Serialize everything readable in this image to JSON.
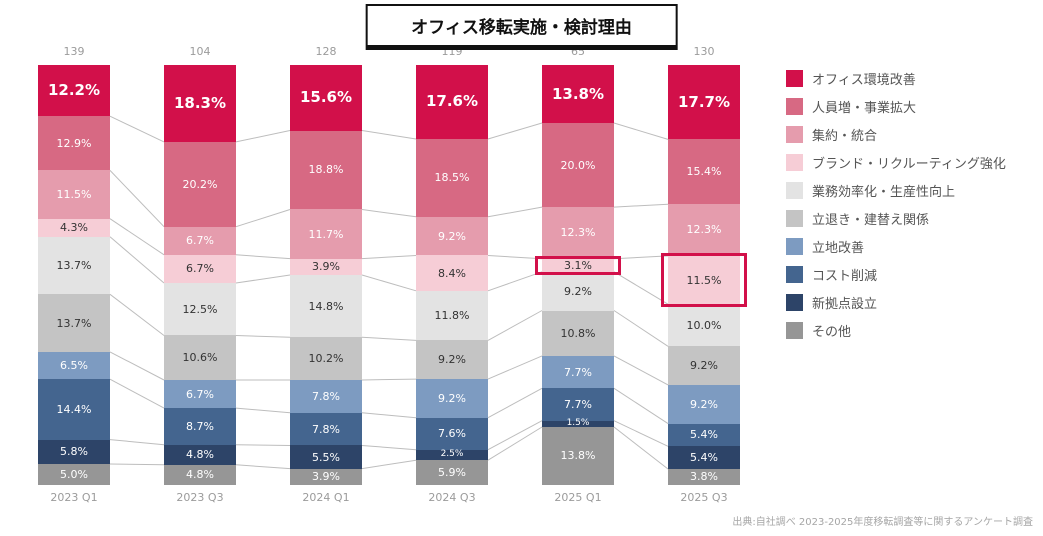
{
  "title": "オフィス移転実施・検討理由",
  "source_note": "出典:自社調べ 2023-2025年度移転調査等に関するアンケート調査",
  "chart_data": {
    "type": "bar",
    "variant": "stacked-100-percent",
    "title": "オフィス移転実施・検討理由",
    "unit": "%",
    "legend_position": "right",
    "grid": false,
    "categories": [
      "2023 Q1",
      "2023 Q3",
      "2024 Q1",
      "2024 Q3",
      "2025 Q1",
      "2025 Q3"
    ],
    "sample_sizes": [
      "139",
      "104",
      "128",
      "119",
      "65",
      "130"
    ],
    "series": [
      {
        "name": "オフィス環境改善",
        "color": "#d2104a",
        "text_color": "#ffffff",
        "values": [
          12.2,
          18.3,
          15.6,
          17.6,
          13.8,
          17.7
        ]
      },
      {
        "name": "人員増・事業拡大",
        "color": "#d76983",
        "text_color": "#ffffff",
        "values": [
          12.9,
          20.2,
          18.8,
          18.5,
          20.0,
          15.4
        ]
      },
      {
        "name": "集約・統合",
        "color": "#e59cad",
        "text_color": "#ffffff",
        "values": [
          11.5,
          6.7,
          11.7,
          9.2,
          12.3,
          12.3
        ]
      },
      {
        "name": "ブランド・リクルーティング強化",
        "color": "#f6cdd6",
        "text_color": "#333333",
        "values": [
          4.3,
          6.7,
          3.9,
          8.4,
          3.1,
          11.5
        ]
      },
      {
        "name": "業務効率化・生産性向上",
        "color": "#e3e3e3",
        "text_color": "#333333",
        "values": [
          13.7,
          12.5,
          14.8,
          11.8,
          9.2,
          10.0
        ]
      },
      {
        "name": "立退き・建替え関係",
        "color": "#c4c4c4",
        "text_color": "#333333",
        "values": [
          13.7,
          10.6,
          10.2,
          9.2,
          10.8,
          9.2
        ]
      },
      {
        "name": "立地改善",
        "color": "#7d9bc1",
        "text_color": "#ffffff",
        "values": [
          6.5,
          6.7,
          7.8,
          9.2,
          7.7,
          9.2
        ]
      },
      {
        "name": "コスト削減",
        "color": "#44658f",
        "text_color": "#ffffff",
        "values": [
          14.4,
          8.7,
          7.8,
          7.6,
          7.7,
          5.4
        ]
      },
      {
        "name": "新拠点設立",
        "color": "#2d4468",
        "text_color": "#ffffff",
        "values": [
          5.8,
          4.8,
          5.5,
          2.5,
          1.5,
          5.4
        ]
      },
      {
        "name": "その他",
        "color": "#969696",
        "text_color": "#ffffff",
        "values": [
          5.0,
          4.8,
          3.9,
          5.9,
          13.8,
          3.8
        ]
      }
    ],
    "highlights": [
      {
        "category_index": 4,
        "series_index": 3
      },
      {
        "category_index": 5,
        "series_index": 3
      }
    ],
    "highlight_color": "#d2104a"
  }
}
